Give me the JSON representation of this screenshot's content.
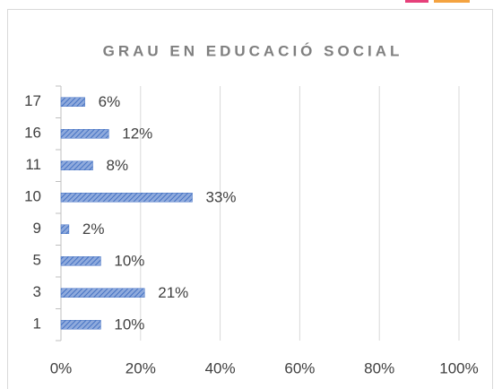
{
  "chart_data": {
    "type": "bar",
    "orientation": "horizontal",
    "title": "GRAU EN EDUCACIÓ SOCIAL",
    "categories": [
      "17",
      "16",
      "11",
      "10",
      "9",
      "5",
      "3",
      "1"
    ],
    "values": [
      6,
      12,
      8,
      33,
      2,
      10,
      21,
      10
    ],
    "value_labels": [
      "6%",
      "12%",
      "8%",
      "33%",
      "2%",
      "10%",
      "21%",
      "10%"
    ],
    "color": "#4472c4",
    "xlim": [
      0,
      100
    ],
    "xticks": [
      {
        "value": 0,
        "label": "0%"
      },
      {
        "value": 20,
        "label": "20%"
      },
      {
        "value": 40,
        "label": "40%"
      },
      {
        "value": 60,
        "label": "60%"
      },
      {
        "value": 80,
        "label": "80%"
      },
      {
        "value": 100,
        "label": "100%"
      }
    ],
    "grid": true
  }
}
